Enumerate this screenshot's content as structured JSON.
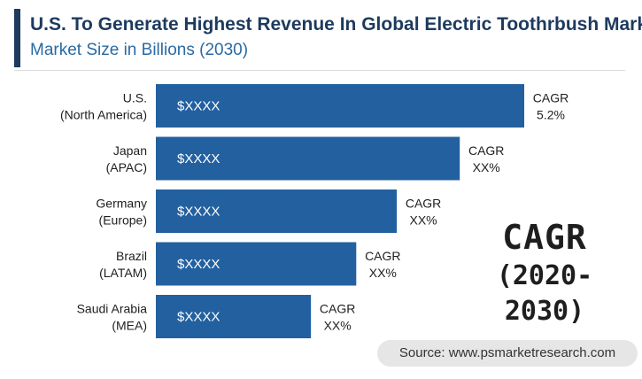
{
  "header": {
    "title": "U.S. To Generate Highest Revenue In Global Electric Toothrbush Market",
    "subtitle": "Market Size in Billions (2030)"
  },
  "chart_data": {
    "type": "bar",
    "orientation": "horizontal",
    "title": "U.S. To Generate Highest Revenue In Global Electric Toothrbush Market",
    "subtitle": "Market Size in Billions (2030)",
    "categories": [
      [
        "U.S.",
        "(North America)"
      ],
      [
        "Japan",
        "(APAC)"
      ],
      [
        "Germany",
        "(Europe)"
      ],
      [
        "Brazil",
        "(LATAM)"
      ],
      [
        "Saudi Arabia",
        "(MEA)"
      ]
    ],
    "relative_values": [
      100,
      82.5,
      65.4,
      54.4,
      42.1
    ],
    "value_labels": [
      "$XXXX",
      "$XXXX",
      "$XXXX",
      "$XXXX",
      "$XXXX"
    ],
    "annotations": [
      [
        "CAGR",
        "5.2%"
      ],
      [
        "CAGR",
        "XX%"
      ],
      [
        "CAGR",
        "XX%"
      ],
      [
        "CAGR",
        "XX%"
      ],
      [
        "CAGR",
        "XX%"
      ]
    ],
    "bar_color": "#2360a0"
  },
  "cagr_callout": {
    "label": "CAGR",
    "period": "(2020-2030)"
  },
  "source": "Source: www.psmarketresearch.com",
  "colors": {
    "title": "#1d3a5f",
    "subtitle": "#2a6aa3",
    "bar": "#2360a0",
    "source_bg": "#e6e6e6"
  }
}
